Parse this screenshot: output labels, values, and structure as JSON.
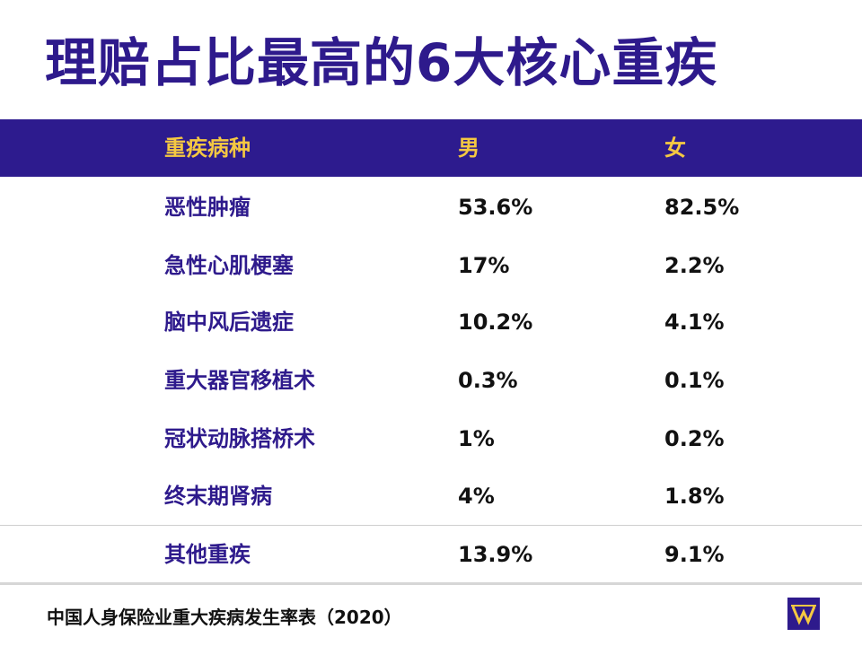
{
  "header": {
    "title": "理赔占比最高的6大核心重疾"
  },
  "table": {
    "columns": [
      "重疾病种",
      "男",
      "女"
    ],
    "rows": [
      [
        "恶性肿瘤",
        "53.6%",
        "82.5%"
      ],
      [
        "急性心肌梗塞",
        "17%",
        "2.2%"
      ],
      [
        "脑中风后遗症",
        "10.2%",
        "4.1%"
      ],
      [
        "重大器官移植术",
        "0.3%",
        "0.1%"
      ],
      [
        "冠状动脉搭桥术",
        "1%",
        "0.2%"
      ],
      [
        "终末期肾病",
        "4%",
        "1.8%"
      ],
      [
        "其他重疾",
        "13.9%",
        "9.1%"
      ]
    ]
  },
  "footer": {
    "source": "中国人身保险业重大疾病发生率表（2020）"
  }
}
